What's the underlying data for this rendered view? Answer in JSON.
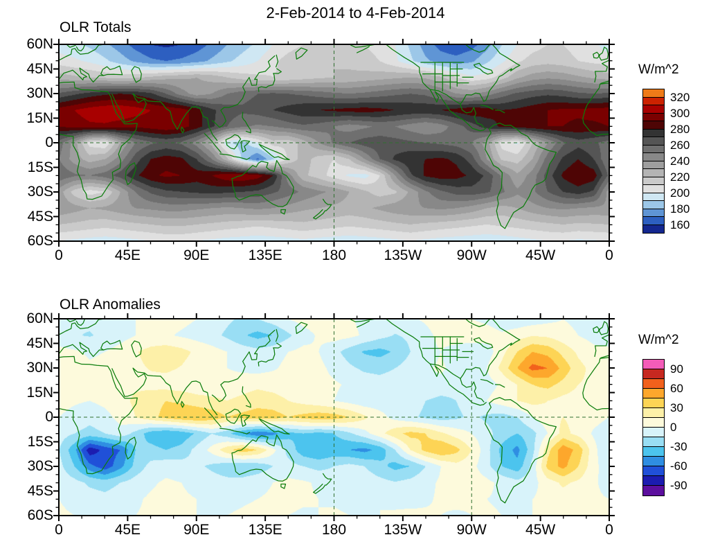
{
  "title": "2-Feb-2014 to 4-Feb-2014",
  "style": {
    "coastline_color": "#0c7d0c",
    "dashed_ref_color": "#2f6f2f",
    "frame_color": "#000000"
  },
  "axes": {
    "lat_ticks": {
      "values": [
        60,
        45,
        30,
        15,
        0,
        -15,
        -30,
        -45,
        -60
      ],
      "labels": [
        "60N",
        "45N",
        "30N",
        "15N",
        "0",
        "15S",
        "30S",
        "45S",
        "60S"
      ]
    },
    "lon_ticks": {
      "values": [
        0,
        45,
        90,
        135,
        180,
        225,
        270,
        315,
        360
      ],
      "labels": [
        "0",
        "45E",
        "90E",
        "135E",
        "180",
        "135W",
        "90W",
        "45W",
        "0"
      ]
    }
  },
  "chart_data": [
    {
      "type": "heatmap",
      "title": "OLR Totals",
      "units": "W/m^2",
      "lon_range": [
        0,
        360
      ],
      "lat_range": [
        -60,
        60
      ],
      "grid_lon_step": 10,
      "grid_lat_step": 10,
      "levels": [
        160,
        170,
        180,
        190,
        200,
        210,
        220,
        230,
        240,
        250,
        260,
        270,
        280,
        290,
        300,
        310,
        320
      ],
      "colors": [
        "#14278f",
        "#2d5fc0",
        "#5f95d5",
        "#9cc7e8",
        "#cfe7f3",
        "#e0e0e0",
        "#cacaca",
        "#b4b4b4",
        "#9e9e9e",
        "#888888",
        "#6f6f6f",
        "#555555",
        "#333333",
        "#4e0505",
        "#7a0000",
        "#a80000",
        "#cc2200",
        "#ef7b18"
      ],
      "colorbar_ticks": {
        "values": [
          320,
          300,
          280,
          260,
          240,
          220,
          200,
          180,
          160
        ],
        "labels": [
          "320",
          "300",
          "280",
          "260",
          "240",
          "220",
          "200",
          "180",
          "160"
        ]
      },
      "ref_lons": [
        180
      ],
      "values": [
        [
          195,
          192,
          188,
          182,
          175,
          166,
          160,
          158,
          160,
          165,
          172,
          180,
          186,
          192,
          200,
          206,
          210,
          214,
          215,
          214,
          210,
          206,
          200,
          188,
          175,
          166,
          162,
          166,
          176,
          190,
          200,
          206,
          210,
          210,
          206,
          202,
          195
        ],
        [
          205,
          202,
          198,
          192,
          185,
          178,
          172,
          170,
          172,
          176,
          182,
          188,
          194,
          200,
          208,
          214,
          218,
          220,
          220,
          218,
          214,
          210,
          202,
          192,
          182,
          176,
          174,
          178,
          188,
          198,
          208,
          214,
          216,
          214,
          210,
          207,
          205
        ],
        [
          225,
          222,
          220,
          218,
          215,
          218,
          222,
          226,
          228,
          230,
          226,
          220,
          215,
          212,
          210,
          212,
          215,
          218,
          220,
          222,
          224,
          226,
          228,
          230,
          228,
          222,
          210,
          202,
          205,
          215,
          228,
          235,
          238,
          236,
          232,
          228,
          225
        ],
        [
          262,
          268,
          274,
          278,
          280,
          278,
          272,
          260,
          245,
          235,
          240,
          250,
          256,
          260,
          262,
          260,
          258,
          255,
          252,
          250,
          252,
          255,
          258,
          260,
          258,
          250,
          240,
          238,
          245,
          255,
          262,
          266,
          268,
          266,
          262,
          260,
          262
        ],
        [
          295,
          300,
          305,
          308,
          308,
          305,
          300,
          298,
          295,
          285,
          272,
          265,
          262,
          265,
          270,
          274,
          278,
          280,
          282,
          284,
          285,
          283,
          280,
          278,
          278,
          280,
          284,
          288,
          285,
          280,
          282,
          286,
          290,
          292,
          292,
          294,
          295
        ],
        [
          290,
          295,
          298,
          298,
          295,
          292,
          295,
          298,
          295,
          285,
          272,
          260,
          252,
          248,
          250,
          255,
          258,
          255,
          250,
          245,
          248,
          252,
          250,
          245,
          240,
          245,
          255,
          265,
          275,
          282,
          285,
          288,
          290,
          290,
          288,
          288,
          290
        ],
        [
          255,
          235,
          205,
          200,
          230,
          250,
          258,
          262,
          258,
          245,
          225,
          192,
          185,
          200,
          215,
          212,
          225,
          240,
          252,
          260,
          265,
          266,
          264,
          262,
          260,
          258,
          255,
          250,
          235,
          205,
          198,
          220,
          240,
          258,
          266,
          262,
          255
        ],
        [
          250,
          235,
          225,
          230,
          245,
          265,
          280,
          285,
          282,
          270,
          250,
          222,
          188,
          168,
          188,
          212,
          225,
          215,
          210,
          220,
          240,
          260,
          272,
          278,
          280,
          282,
          278,
          265,
          240,
          218,
          215,
          230,
          255,
          272,
          280,
          270,
          250
        ],
        [
          258,
          252,
          250,
          255,
          265,
          278,
          288,
          292,
          290,
          285,
          290,
          298,
          300,
          295,
          280,
          245,
          222,
          215,
          205,
          198,
          195,
          210,
          240,
          268,
          282,
          286,
          284,
          278,
          268,
          248,
          232,
          245,
          265,
          282,
          290,
          286,
          258
        ],
        [
          235,
          215,
          205,
          210,
          230,
          250,
          262,
          268,
          270,
          272,
          274,
          272,
          270,
          268,
          262,
          255,
          248,
          242,
          238,
          230,
          222,
          215,
          218,
          232,
          248,
          258,
          264,
          266,
          262,
          252,
          242,
          248,
          260,
          270,
          275,
          268,
          235
        ],
        [
          238,
          234,
          230,
          232,
          236,
          240,
          242,
          244,
          244,
          242,
          240,
          238,
          240,
          242,
          240,
          236,
          232,
          230,
          228,
          226,
          228,
          232,
          236,
          238,
          240,
          242,
          240,
          236,
          230,
          226,
          230,
          236,
          240,
          242,
          240,
          238,
          238
        ],
        [
          220,
          218,
          216,
          214,
          216,
          218,
          220,
          222,
          222,
          220,
          218,
          216,
          214,
          212,
          214,
          216,
          218,
          216,
          214,
          212,
          214,
          216,
          218,
          220,
          218,
          216,
          214,
          212,
          210,
          212,
          214,
          216,
          218,
          220,
          218,
          219,
          220
        ],
        [
          200,
          198,
          196,
          195,
          196,
          198,
          200,
          202,
          202,
          200,
          198,
          196,
          195,
          194,
          195,
          196,
          198,
          196,
          195,
          194,
          195,
          196,
          198,
          200,
          198,
          196,
          195,
          194,
          193,
          194,
          196,
          198,
          200,
          200,
          198,
          199,
          200
        ]
      ]
    },
    {
      "type": "heatmap",
      "title": "OLR Anomalies",
      "units": "W/m^2",
      "lon_range": [
        0,
        360
      ],
      "lat_range": [
        -60,
        60
      ],
      "grid_lon_step": 10,
      "grid_lat_step": 10,
      "levels": [
        -90,
        -75,
        -60,
        -45,
        -30,
        -15,
        0,
        15,
        30,
        45,
        60,
        75,
        90
      ],
      "colors": [
        "#5c0f9e",
        "#1c1cb0",
        "#2050d8",
        "#2f8ee2",
        "#4cc4ee",
        "#99def4",
        "#d8f3fa",
        "#fdfadc",
        "#fdf0a8",
        "#fdd455",
        "#fda72c",
        "#f2611c",
        "#c62820",
        "#f45cb8"
      ],
      "colorbar_ticks": {
        "values": [
          90,
          60,
          30,
          0,
          -30,
          -60,
          -90
        ],
        "labels": [
          "90",
          "60",
          "30",
          "0",
          "-30",
          "-60",
          "-90"
        ]
      },
      "ref_lons": [
        180,
        270
      ],
      "values": [
        [
          -12,
          -15,
          -12,
          -8,
          -4,
          0,
          4,
          6,
          4,
          0,
          -6,
          -12,
          -18,
          -15,
          -8,
          0,
          5,
          8,
          6,
          2,
          -4,
          -8,
          -6,
          -2,
          2,
          6,
          4,
          0,
          -4,
          -8,
          -10,
          -8,
          -4,
          0,
          -4,
          -8,
          -12
        ],
        [
          -10,
          -14,
          -16,
          -12,
          -6,
          0,
          4,
          2,
          -2,
          -6,
          -10,
          -18,
          -28,
          -35,
          -30,
          -18,
          -6,
          2,
          6,
          4,
          -2,
          -10,
          -16,
          -12,
          -4,
          4,
          10,
          12,
          8,
          2,
          8,
          14,
          12,
          6,
          0,
          -5,
          -10
        ],
        [
          5,
          2,
          -2,
          0,
          6,
          14,
          20,
          24,
          20,
          12,
          6,
          0,
          -6,
          -10,
          -6,
          0,
          4,
          0,
          -10,
          -22,
          -32,
          -35,
          -28,
          -15,
          -5,
          0,
          -8,
          -15,
          -8,
          10,
          30,
          45,
          40,
          25,
          12,
          4,
          5
        ],
        [
          8,
          5,
          2,
          4,
          8,
          12,
          16,
          18,
          14,
          8,
          4,
          0,
          -4,
          -6,
          -2,
          4,
          8,
          4,
          -4,
          -12,
          -18,
          -20,
          -15,
          -8,
          -2,
          2,
          -4,
          -10,
          0,
          20,
          45,
          65,
          60,
          40,
          20,
          10,
          8
        ],
        [
          10,
          8,
          6,
          8,
          10,
          12,
          10,
          8,
          6,
          4,
          6,
          8,
          10,
          12,
          10,
          8,
          6,
          4,
          2,
          -2,
          -6,
          -8,
          -6,
          -2,
          0,
          -4,
          -8,
          -10,
          -6,
          2,
          15,
          30,
          35,
          25,
          15,
          12,
          10
        ],
        [
          5,
          2,
          0,
          4,
          10,
          18,
          25,
          30,
          28,
          22,
          18,
          15,
          18,
          22,
          20,
          15,
          10,
          5,
          0,
          -5,
          -10,
          -8,
          -4,
          -8,
          -15,
          -20,
          -15,
          -8,
          0,
          8,
          15,
          20,
          15,
          10,
          8,
          6,
          5
        ],
        [
          0,
          -5,
          -10,
          -5,
          5,
          15,
          25,
          35,
          42,
          45,
          40,
          30,
          35,
          40,
          38,
          30,
          35,
          40,
          38,
          30,
          18,
          5,
          -5,
          -12,
          -18,
          -22,
          -18,
          -12,
          -18,
          -22,
          -15,
          0,
          10,
          15,
          10,
          5,
          0
        ],
        [
          -8,
          -15,
          -20,
          -15,
          -5,
          -20,
          -38,
          -45,
          -40,
          -28,
          -15,
          -25,
          -45,
          -58,
          -50,
          -35,
          -30,
          -35,
          -30,
          -18,
          -5,
          10,
          25,
          35,
          30,
          18,
          8,
          0,
          -10,
          -22,
          -30,
          -20,
          0,
          20,
          10,
          -2,
          -8
        ],
        [
          -15,
          -40,
          -85,
          -70,
          -60,
          -30,
          -25,
          -30,
          -25,
          -10,
          5,
          25,
          40,
          30,
          5,
          -20,
          -40,
          -45,
          -40,
          -45,
          -50,
          -40,
          -15,
          15,
          35,
          45,
          35,
          15,
          -10,
          -35,
          -50,
          -20,
          25,
          55,
          40,
          5,
          -15
        ],
        [
          -10,
          -30,
          -55,
          -70,
          -50,
          -25,
          -10,
          -5,
          -8,
          -12,
          -18,
          -25,
          -30,
          -25,
          -15,
          -10,
          -15,
          -20,
          -15,
          -10,
          -15,
          -25,
          -35,
          -30,
          -15,
          0,
          10,
          5,
          -10,
          -30,
          -40,
          -10,
          35,
          50,
          30,
          5,
          -10
        ],
        [
          -5,
          -10,
          -18,
          -22,
          -15,
          -8,
          -2,
          2,
          0,
          -4,
          -8,
          -10,
          -8,
          -4,
          0,
          4,
          2,
          -2,
          -6,
          -8,
          -6,
          -10,
          -14,
          -10,
          -4,
          2,
          6,
          8,
          4,
          -4,
          -10,
          -5,
          8,
          18,
          12,
          2,
          -5
        ],
        [
          0,
          -4,
          -8,
          -10,
          -6,
          -2,
          2,
          4,
          2,
          0,
          -2,
          -4,
          -2,
          0,
          2,
          4,
          2,
          0,
          -2,
          -4,
          -2,
          0,
          -4,
          -6,
          -2,
          2,
          4,
          2,
          0,
          -2,
          -4,
          0,
          4,
          8,
          6,
          2,
          0
        ],
        [
          2,
          0,
          -2,
          -4,
          -2,
          0,
          2,
          4,
          2,
          0,
          -2,
          0,
          2,
          4,
          2,
          0,
          -2,
          0,
          2,
          0,
          -2,
          0,
          2,
          4,
          2,
          0,
          -2,
          0,
          2,
          0,
          -2,
          0,
          2,
          4,
          2,
          0,
          2
        ]
      ]
    }
  ]
}
